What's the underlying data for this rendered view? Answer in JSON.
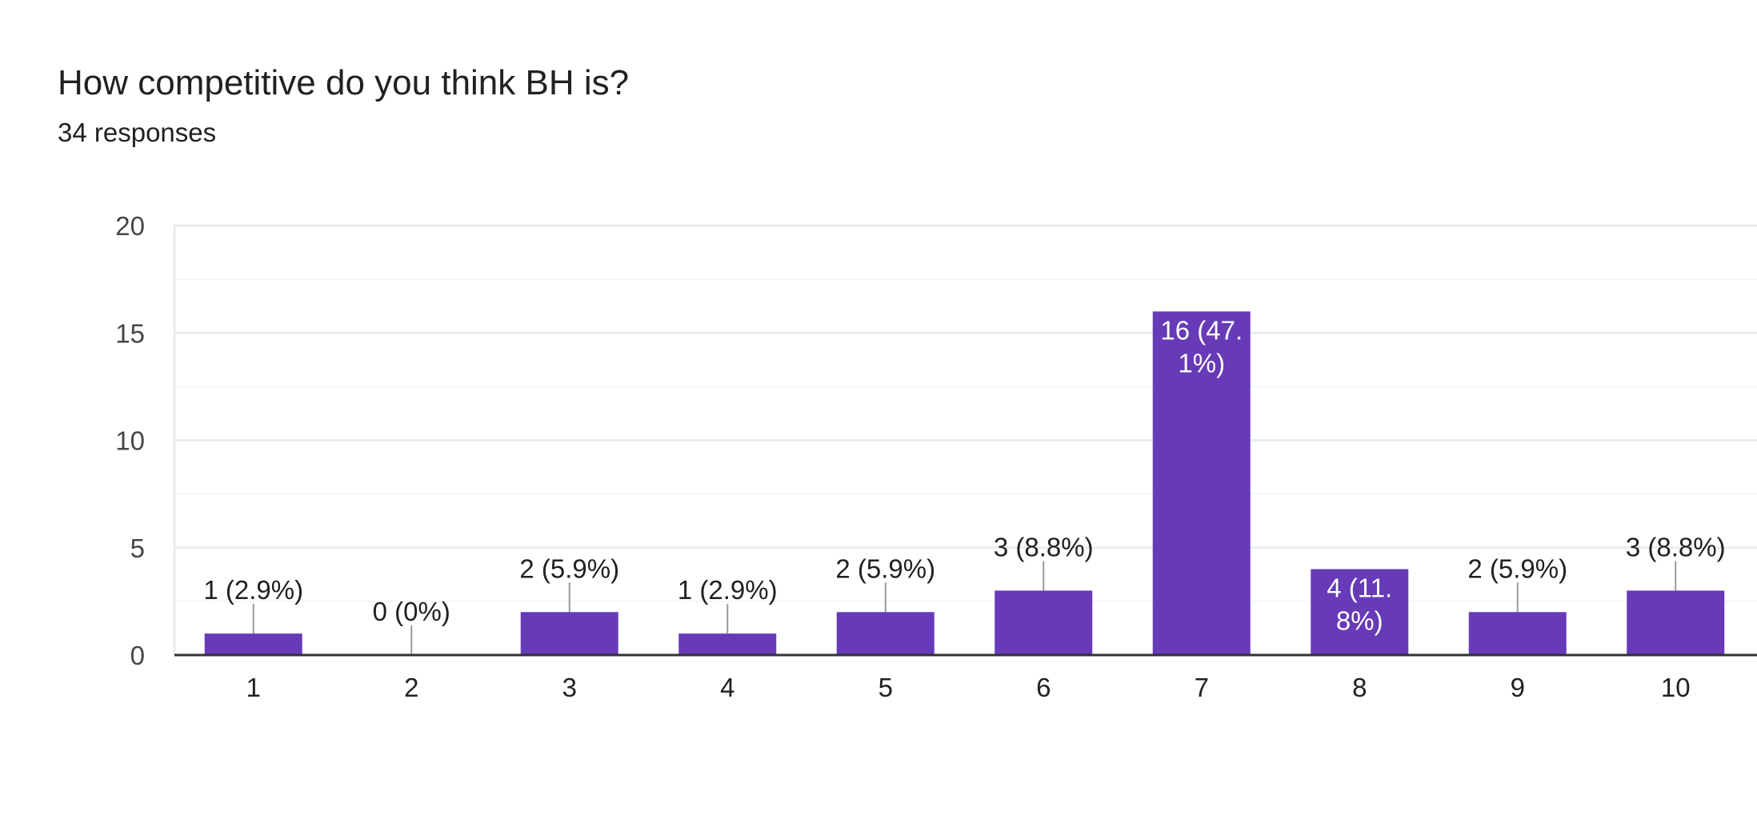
{
  "header": {
    "title": "How competitive do you think BH is?",
    "subtitle": "34 responses"
  },
  "colors": {
    "bar": "#673ab7",
    "gridline": "#ebebeb",
    "minor_gridline": "#f5f5f5",
    "axis": "#333333",
    "leader": "#999999",
    "label_dark": "#202124",
    "label_light": "#ffffff"
  },
  "chart_data": {
    "type": "bar",
    "title": "",
    "xlabel": "",
    "ylabel": "",
    "ylim": [
      0,
      20
    ],
    "yticks": [
      0,
      5,
      10,
      15,
      20
    ],
    "grid": true,
    "legend": "none",
    "categories": [
      "1",
      "2",
      "3",
      "4",
      "5",
      "6",
      "7",
      "8",
      "9",
      "10"
    ],
    "values": [
      1,
      0,
      2,
      1,
      2,
      3,
      16,
      4,
      2,
      3
    ],
    "data_labels": [
      "1 (2.9%)",
      "0 (0%)",
      "2 (5.9%)",
      "1 (2.9%)",
      "2 (5.9%)",
      "3 (8.8%)",
      [
        "16 (47.",
        "1%)"
      ],
      [
        "4 (11.",
        "8%)"
      ],
      "2 (5.9%)",
      "3 (8.8%)"
    ]
  }
}
